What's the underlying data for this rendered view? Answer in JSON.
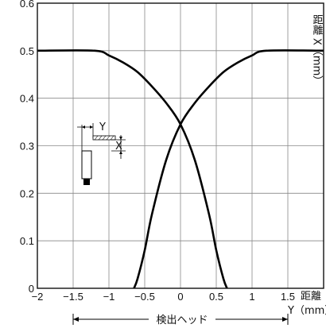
{
  "chart_data": {
    "type": "line",
    "title": "",
    "xlabel_main": "距離",
    "xlabel_sub": "Y（mm）",
    "ylabel_main": "距離",
    "ylabel_sub": "X（mm）",
    "xlim": [
      -2,
      2
    ],
    "ylim": [
      0,
      0.6
    ],
    "x_ticks": [
      -2,
      -1.5,
      -1,
      -0.5,
      0,
      0.5,
      1,
      1.5
    ],
    "x_tick_labels": [
      "−2",
      "−1.5",
      "−1",
      "−0.5",
      "0",
      "0.5",
      "1",
      "1.5"
    ],
    "y_ticks": [
      0,
      0.1,
      0.2,
      0.3,
      0.4,
      0.5,
      0.6
    ],
    "y_tick_labels": [
      "0",
      "0.1",
      "0.2",
      "0.3",
      "0.4",
      "0.5",
      "0.6"
    ],
    "grid": true,
    "series": [
      {
        "x": [
          -2,
          -1.2,
          -1.0,
          -0.8,
          -0.6,
          -0.4,
          -0.2,
          0,
          0.2,
          0.4,
          0.5,
          0.6,
          0.65
        ],
        "y": [
          0.5,
          0.5,
          0.49,
          0.475,
          0.455,
          0.425,
          0.39,
          0.345,
          0.27,
          0.155,
          0.08,
          0.02,
          0
        ]
      },
      {
        "x": [
          -0.65,
          -0.6,
          -0.5,
          -0.4,
          -0.2,
          0,
          0.2,
          0.4,
          0.6,
          0.8,
          1.0,
          1.2,
          2
        ],
        "y": [
          0,
          0.02,
          0.08,
          0.155,
          0.27,
          0.345,
          0.39,
          0.425,
          0.455,
          0.475,
          0.49,
          0.5,
          0.5
        ]
      }
    ],
    "annotations": {
      "inset_y_label": "Y",
      "inset_x_label": "X",
      "range_label": "検出ヘッド",
      "range_from": -1.5,
      "range_to": 1.5
    }
  }
}
